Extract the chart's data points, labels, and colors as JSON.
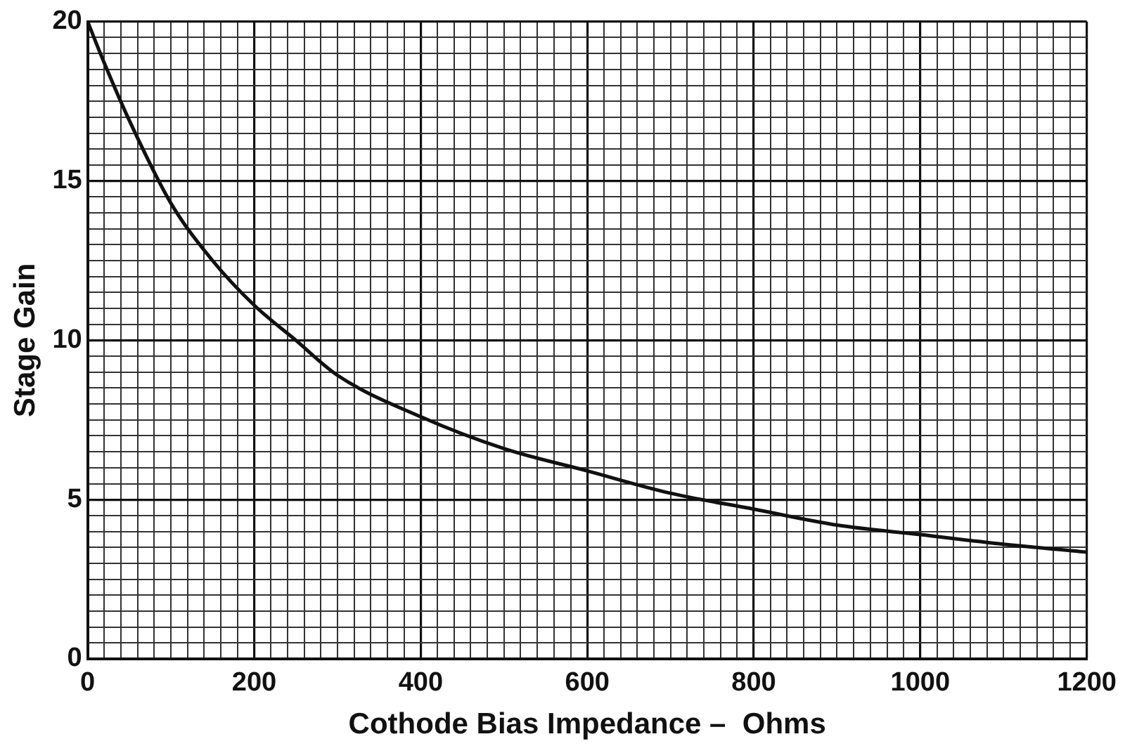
{
  "chart_data": {
    "type": "line",
    "xlabel": "Cothode Bias Impedance –  Ohms",
    "ylabel": "Stage Gain",
    "x": [
      0,
      20,
      50,
      100,
      150,
      200,
      250,
      300,
      400,
      500,
      600,
      700,
      800,
      900,
      1000,
      1100,
      1200
    ],
    "series": [
      {
        "color": "#111111",
        "values": [
          20,
          18.7,
          16.9,
          14.3,
          12.5,
          11.1,
          10.0,
          8.9,
          7.6,
          6.6,
          5.9,
          5.2,
          4.7,
          4.2,
          3.9,
          3.6,
          3.35
        ]
      }
    ],
    "xlim": [
      0,
      1200
    ],
    "ylim": [
      0,
      20
    ],
    "xticks": [
      0,
      {
        "value": 20,
        "label": null
      },
      {
        "value": 40,
        "label": null
      },
      {
        "value": 60,
        "label": null
      },
      {
        "value": 80,
        "label": null
      },
      {
        "value": 100,
        "label": null
      },
      {
        "value": 120,
        "label": null
      },
      {
        "value": 140,
        "label": null
      },
      {
        "value": 160,
        "label": null
      },
      {
        "value": 180,
        "label": null
      },
      200,
      {
        "value": 220,
        "label": null
      },
      {
        "value": 240,
        "label": null
      },
      {
        "value": 260,
        "label": null
      },
      {
        "value": 280,
        "label": null
      },
      {
        "value": 300,
        "label": null
      },
      {
        "value": 320,
        "label": null
      },
      {
        "value": 340,
        "label": null
      },
      {
        "value": 360,
        "label": null
      },
      {
        "value": 380,
        "label": null
      },
      400,
      {
        "value": 420,
        "label": null
      },
      {
        "value": 440,
        "label": null
      },
      {
        "value": 460,
        "label": null
      },
      {
        "value": 480,
        "label": null
      },
      {
        "value": 500,
        "label": null
      },
      {
        "value": 520,
        "label": null
      },
      {
        "value": 540,
        "label": null
      },
      {
        "value": 560,
        "label": null
      },
      {
        "value": 580,
        "label": null
      },
      600,
      {
        "value": 620,
        "label": null
      },
      {
        "value": 640,
        "label": null
      },
      {
        "value": 660,
        "label": null
      },
      {
        "value": 680,
        "label": null
      },
      {
        "value": 700,
        "label": null
      },
      {
        "value": 720,
        "label": null
      },
      {
        "value": 740,
        "label": null
      },
      {
        "value": 760,
        "label": null
      },
      {
        "value": 780,
        "label": null
      },
      800,
      {
        "value": 820,
        "label": null
      },
      {
        "value": 840,
        "label": null
      },
      {
        "value": 860,
        "label": null
      },
      {
        "value": 880,
        "label": null
      },
      {
        "value": 900,
        "label": null
      },
      {
        "value": 920,
        "label": null
      },
      {
        "value": 940,
        "label": null
      },
      {
        "value": 960,
        "label": null
      },
      {
        "value": 980,
        "label": null
      },
      1000,
      {
        "value": 1020,
        "label": null
      },
      {
        "value": 1040,
        "label": null
      },
      {
        "value": 1060,
        "label": null
      },
      {
        "value": 1080,
        "label": null
      },
      {
        "value": 1100,
        "label": null
      },
      {
        "value": 1120,
        "label": null
      },
      {
        "value": 1140,
        "label": null
      },
      {
        "value": 1160,
        "label": null
      },
      {
        "value": 1180,
        "label": null
      },
      1200
    ],
    "yticks": [
      0,
      {
        "value": 0.5,
        "label": null
      },
      {
        "value": 1,
        "label": null
      },
      {
        "value": 1.5,
        "label": null
      },
      {
        "value": 2,
        "label": null
      },
      {
        "value": 2.5,
        "label": null
      },
      {
        "value": 3,
        "label": null
      },
      {
        "value": 3.5,
        "label": null
      },
      {
        "value": 4,
        "label": null
      },
      {
        "value": 4.5,
        "label": null
      },
      5,
      {
        "value": 5.5,
        "label": null
      },
      {
        "value": 6,
        "label": null
      },
      {
        "value": 6.5,
        "label": null
      },
      {
        "value": 7,
        "label": null
      },
      {
        "value": 7.5,
        "label": null
      },
      {
        "value": 8,
        "label": null
      },
      {
        "value": 8.5,
        "label": null
      },
      {
        "value": 9,
        "label": null
      },
      {
        "value": 9.5,
        "label": null
      },
      10,
      {
        "value": 10.5,
        "label": null
      },
      {
        "value": 11,
        "label": null
      },
      {
        "value": 11.5,
        "label": null
      },
      {
        "value": 12,
        "label": null
      },
      {
        "value": 12.5,
        "label": null
      },
      {
        "value": 13,
        "label": null
      },
      {
        "value": 13.5,
        "label": null
      },
      {
        "value": 14,
        "label": null
      },
      {
        "value": 14.5,
        "label": null
      },
      15,
      {
        "value": 15.5,
        "label": null
      },
      {
        "value": 16,
        "label": null
      },
      {
        "value": 16.5,
        "label": null
      },
      {
        "value": 17,
        "label": null
      },
      {
        "value": 17.5,
        "label": null
      },
      {
        "value": 18,
        "label": null
      },
      {
        "value": 18.5,
        "label": null
      },
      {
        "value": 19,
        "label": null
      },
      {
        "value": 19.5,
        "label": null
      },
      20
    ],
    "grid": true,
    "legend": false,
    "marker": "none",
    "line_style": "solid"
  }
}
